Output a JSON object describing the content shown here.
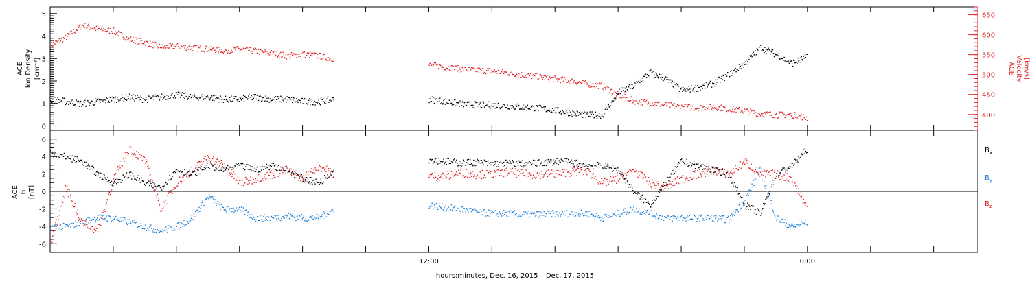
{
  "chart_data": [
    {
      "type": "scatter",
      "panel": "top",
      "ylabel": [
        "ACE",
        "Ion Density",
        "[cm⁻³]"
      ],
      "ylabel_right": [
        "ACE",
        "Velocity",
        "[km/s]"
      ],
      "ylim": [
        -0.2,
        5.3
      ],
      "ylim_right": [
        360,
        670
      ],
      "yticks": [
        "0",
        "1",
        "2",
        "3",
        "4",
        "5"
      ],
      "yticks_right": [
        "400",
        "450",
        "500",
        "550",
        "600",
        "650"
      ],
      "series": [
        {
          "axis": "left",
          "color": "#000000",
          "x": [
            0,
            0.5,
            1,
            1.5,
            2,
            2.5,
            3,
            3.5,
            4,
            4.5,
            5,
            5.5,
            6,
            6.5,
            7,
            7.5,
            8,
            8.5,
            9,
            9.5,
            10,
            10.5,
            11,
            11.5,
            12,
            12.5,
            13,
            13.5,
            14,
            14.5,
            15,
            15.5,
            16,
            16.5,
            17,
            17.5,
            18,
            18.5,
            19,
            19.5,
            20,
            20.5,
            21,
            21.5,
            22,
            22.5,
            23,
            23.5,
            24
          ],
          "y": [
            1.2,
            1.1,
            1.0,
            1.1,
            1.2,
            1.3,
            1.2,
            1.3,
            1.4,
            1.3,
            1.3,
            1.2,
            1.2,
            1.3,
            1.2,
            1.2,
            1.1,
            1.1,
            1.2,
            null,
            null,
            null,
            null,
            null,
            1.2,
            1.1,
            1.0,
            0.95,
            0.95,
            0.9,
            0.85,
            0.8,
            0.7,
            0.6,
            0.5,
            0.5,
            1.5,
            1.8,
            2.4,
            2.1,
            1.6,
            1.7,
            1.9,
            2.3,
            2.8,
            3.5,
            3.2,
            2.8,
            3.1
          ]
        },
        {
          "axis": "right",
          "color": "#dd2222",
          "x": [
            0,
            0.5,
            1,
            1.5,
            2,
            2.5,
            3,
            3.5,
            4,
            4.5,
            5,
            5.5,
            6,
            6.5,
            7,
            7.5,
            8,
            8.5,
            9,
            9.5,
            10,
            10.5,
            11,
            11.5,
            12,
            12.5,
            13,
            13.5,
            14,
            14.5,
            15,
            15.5,
            16,
            16.5,
            17,
            17.5,
            18,
            18.5,
            19,
            19.5,
            20,
            20.5,
            21,
            21.5,
            22,
            22.5,
            23,
            23.5,
            24
          ],
          "y": [
            575,
            595,
            625,
            615,
            610,
            590,
            582,
            570,
            572,
            568,
            565,
            562,
            565,
            560,
            555,
            548,
            552,
            548,
            540,
            null,
            null,
            null,
            null,
            null,
            525,
            520,
            515,
            512,
            510,
            505,
            500,
            495,
            490,
            485,
            478,
            472,
            450,
            435,
            430,
            425,
            420,
            418,
            420,
            415,
            410,
            403,
            400,
            400,
            392
          ]
        }
      ]
    },
    {
      "type": "scatter",
      "panel": "bottom",
      "ylabel": [
        "ACE",
        "B",
        "[nT]"
      ],
      "ylim": [
        -7,
        7
      ],
      "yticks": [
        "-6",
        "-4",
        "-2",
        "0",
        "2",
        "4",
        "6"
      ],
      "xtick_labels": [
        {
          "x": 12,
          "label": "12:00"
        },
        {
          "x": 24,
          "label": "0:00"
        }
      ],
      "xlabel": "hours:minutes, Dec. 16, 2015 – Dec. 17, 2015",
      "xlim": [
        0,
        29.4
      ],
      "legend": [
        {
          "main": "B",
          "sub": "x",
          "color": "#000000"
        },
        {
          "main": "B",
          "sub": "y",
          "color": "#1f7fd6"
        },
        {
          "main": "B",
          "sub": "z",
          "color": "#dd2222"
        }
      ],
      "series": [
        {
          "name": "Bx",
          "color": "#000000",
          "x": [
            0,
            0.5,
            1,
            1.5,
            2,
            2.5,
            3,
            3.5,
            4,
            4.5,
            5,
            5.5,
            6,
            6.5,
            7,
            7.5,
            8,
            8.5,
            9,
            9.5,
            10,
            10.5,
            11,
            11.5,
            12,
            12.5,
            13,
            13.5,
            14,
            14.5,
            15,
            15.5,
            16,
            16.5,
            17,
            17.5,
            18,
            18.5,
            19,
            19.5,
            20,
            20.5,
            21,
            21.5,
            22,
            22.5,
            23,
            23.5,
            24
          ],
          "y": [
            4.5,
            4.0,
            3.5,
            2.0,
            1.0,
            2.0,
            1.0,
            0.5,
            2.5,
            2.0,
            3.0,
            2.5,
            3.0,
            2.5,
            3.0,
            2.5,
            1.5,
            1.0,
            2.5,
            null,
            null,
            null,
            null,
            null,
            3.7,
            3.5,
            3.3,
            3.4,
            3.2,
            3.3,
            3.2,
            3.3,
            3.5,
            3.4,
            3.0,
            3.0,
            2.5,
            0,
            -1.5,
            1.0,
            3.5,
            3.0,
            2.5,
            2.0,
            -1.5,
            -2.5,
            2.0,
            3.0,
            5.0
          ]
        },
        {
          "name": "By",
          "color": "#1f7fd6",
          "x": [
            0,
            0.5,
            1,
            1.5,
            2,
            2.5,
            3,
            3.5,
            4,
            4.5,
            5,
            5.5,
            6,
            6.5,
            7,
            7.5,
            8,
            8.5,
            9,
            9.5,
            10,
            10.5,
            11,
            11.5,
            12,
            12.5,
            13,
            13.5,
            14,
            14.5,
            15,
            15.5,
            16,
            16.5,
            17,
            17.5,
            18,
            18.5,
            19,
            19.5,
            20,
            20.5,
            21,
            21.5,
            22,
            22.5,
            23,
            23.5,
            24
          ],
          "y": [
            -4.0,
            -4.0,
            -3.5,
            -3.0,
            -3.0,
            -3.5,
            -4.0,
            -4.5,
            -4.0,
            -3.0,
            -0.5,
            -2.0,
            -2.0,
            -3.0,
            -3.0,
            -2.8,
            -3.0,
            -3.0,
            -2.0,
            null,
            null,
            null,
            null,
            null,
            -1.5,
            -1.8,
            -2.0,
            -2.3,
            -2.5,
            -2.5,
            -2.6,
            -2.6,
            -2.5,
            -2.5,
            -2.5,
            -3.0,
            -2.5,
            -2.0,
            -2.5,
            -3.0,
            -3.0,
            -3.0,
            -3.0,
            -3.2,
            -1.0,
            2.5,
            -3.0,
            -4.0,
            -3.5
          ]
        },
        {
          "name": "Bz",
          "color": "#dd2222",
          "x": [
            0,
            0.5,
            1,
            1.5,
            2,
            2.5,
            3,
            3.5,
            4,
            4.5,
            5,
            5.5,
            6,
            6.5,
            7,
            7.5,
            8,
            8.5,
            9,
            9.5,
            10,
            10.5,
            11,
            11.5,
            12,
            12.5,
            13,
            13.5,
            14,
            14.5,
            15,
            15.5,
            16,
            16.5,
            17,
            17.5,
            18,
            18.5,
            19,
            19.5,
            20,
            20.5,
            21,
            21.5,
            22,
            22.5,
            23,
            23.5,
            24
          ],
          "y": [
            -6.0,
            0.5,
            -3.5,
            -4.5,
            1.5,
            5.0,
            3.5,
            -2.0,
            1.0,
            2.5,
            4.0,
            3.0,
            1.0,
            1.5,
            2.0,
            2.5,
            1.5,
            3.0,
            2.0,
            null,
            null,
            null,
            null,
            null,
            1.8,
            1.8,
            2.2,
            2.0,
            2.0,
            2.3,
            2.0,
            2.0,
            2.1,
            2.3,
            2.4,
            1.0,
            1.5,
            2.5,
            1.0,
            0.5,
            1.5,
            2.0,
            2.5,
            2.0,
            3.5,
            2.0,
            2.0,
            1.5,
            -2.0
          ]
        }
      ]
    }
  ]
}
